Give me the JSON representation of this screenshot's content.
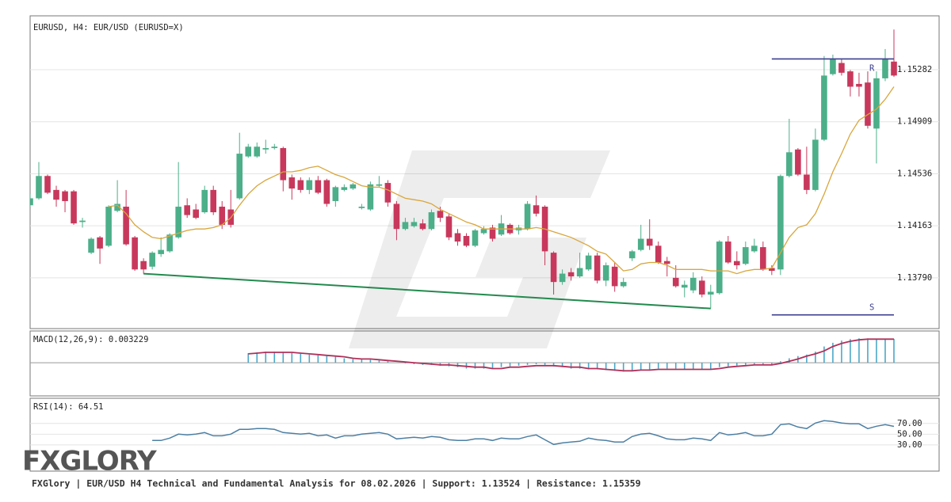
{
  "chart_data": [
    {
      "type": "candlestick",
      "title": "EURUSD, H4: EUR/USD (EURUSD=X)",
      "open": [
        1.1431,
        1.1436,
        1.1452,
        1.1442,
        1.1441,
        1.1441,
        1.1419,
        1.1397,
        1.1408,
        1.1402,
        1.1427,
        1.143,
        1.1408,
        1.1391,
        1.1387,
        1.1396,
        1.1398,
        1.1408,
        1.1431,
        1.1428,
        1.1426,
        1.1442,
        1.143,
        1.1428,
        1.1436,
        1.1466,
        1.1466,
        1.1471,
        1.1472,
        1.1472,
        1.1451,
        1.1449,
        1.1442,
        1.1449,
        1.1449,
        1.1434,
        1.1442,
        1.1443,
        1.1429,
        1.1428,
        1.1445,
        1.1447,
        1.1432,
        1.1414,
        1.1416,
        1.1418,
        1.1414,
        1.1427,
        1.1423,
        1.1411,
        1.1409,
        1.1402,
        1.1411,
        1.1415,
        1.141,
        1.1417,
        1.1413,
        1.1414,
        1.1431,
        1.143,
        1.1397,
        1.1376,
        1.1383,
        1.138,
        1.1385,
        1.1395,
        1.1377,
        1.1387,
        1.1373,
        1.1393,
        1.1399,
        1.1407,
        1.1402,
        1.1391,
        1.1379,
        1.1372,
        1.137,
        1.1377,
        1.1367,
        1.1368,
        1.1405,
        1.1391,
        1.1389,
        1.1398,
        1.1401,
        1.1386,
        1.1385,
        1.1452,
        1.1471,
        1.1453,
        1.1442,
        1.1478,
        1.1525,
        1.1533,
        1.1527,
        1.1518,
        1.1519,
        1.1486,
        1.1522,
        1.1534
      ],
      "high": [
        1.1439,
        1.1462,
        1.1453,
        1.1445,
        1.1442,
        1.1442,
        1.1422,
        1.1408,
        1.1409,
        1.1431,
        1.1449,
        1.1442,
        1.1409,
        1.1393,
        1.1398,
        1.1408,
        1.1411,
        1.1462,
        1.1436,
        1.1432,
        1.1445,
        1.1445,
        1.1434,
        1.1442,
        1.1483,
        1.1475,
        1.1476,
        1.1478,
        1.1475,
        1.1473,
        1.1453,
        1.1451,
        1.1451,
        1.1452,
        1.145,
        1.1445,
        1.1446,
        1.1447,
        1.1432,
        1.1448,
        1.1452,
        1.1449,
        1.1434,
        1.1422,
        1.1422,
        1.1421,
        1.1428,
        1.143,
        1.1425,
        1.1414,
        1.1411,
        1.1414,
        1.1416,
        1.1417,
        1.1424,
        1.1418,
        1.1417,
        1.1434,
        1.1438,
        1.1431,
        1.1398,
        1.1385,
        1.1386,
        1.1397,
        1.1397,
        1.1397,
        1.139,
        1.139,
        1.1379,
        1.1399,
        1.1417,
        1.1421,
        1.1405,
        1.1394,
        1.1388,
        1.1377,
        1.1383,
        1.138,
        1.1374,
        1.1406,
        1.1409,
        1.1398,
        1.1405,
        1.1407,
        1.1405,
        1.1388,
        1.1453,
        1.1493,
        1.1472,
        1.1473,
        1.1486,
        1.1538,
        1.1539,
        1.1536,
        1.1528,
        1.1526,
        1.1527,
        1.1527,
        1.1543,
        1.1557
      ],
      "low": [
        1.143,
        1.1435,
        1.1439,
        1.143,
        1.1426,
        1.1417,
        1.1415,
        1.1396,
        1.1389,
        1.1401,
        1.1426,
        1.1402,
        1.1384,
        1.1382,
        1.1385,
        1.1394,
        1.1397,
        1.1407,
        1.1422,
        1.1421,
        1.1425,
        1.1424,
        1.1414,
        1.1415,
        1.1435,
        1.1465,
        1.1465,
        1.1468,
        1.1471,
        1.1441,
        1.1435,
        1.144,
        1.1439,
        1.1439,
        1.143,
        1.143,
        1.1441,
        1.1442,
        1.1428,
        1.1427,
        1.1444,
        1.143,
        1.1406,
        1.1413,
        1.1415,
        1.1413,
        1.1413,
        1.1419,
        1.1406,
        1.1402,
        1.1401,
        1.1401,
        1.141,
        1.1405,
        1.1409,
        1.141,
        1.141,
        1.1413,
        1.1423,
        1.1388,
        1.1367,
        1.1374,
        1.1377,
        1.1379,
        1.1384,
        1.1375,
        1.1373,
        1.1369,
        1.1372,
        1.1391,
        1.1398,
        1.1399,
        1.1389,
        1.138,
        1.1372,
        1.1365,
        1.1368,
        1.1365,
        1.1357,
        1.1367,
        1.1389,
        1.1385,
        1.1388,
        1.1397,
        1.1384,
        1.1381,
        1.1381,
        1.1451,
        1.1452,
        1.1439,
        1.1441,
        1.1477,
        1.1524,
        1.1524,
        1.1509,
        1.1509,
        1.1486,
        1.1461,
        1.152,
        1.1523
      ],
      "close": [
        1.1436,
        1.1452,
        1.144,
        1.1435,
        1.1434,
        1.1418,
        1.142,
        1.1407,
        1.14,
        1.143,
        1.1432,
        1.1403,
        1.1385,
        1.1385,
        1.1397,
        1.1399,
        1.141,
        1.143,
        1.1424,
        1.1422,
        1.1442,
        1.1426,
        1.1417,
        1.1417,
        1.1468,
        1.1473,
        1.1473,
        1.1472,
        1.1473,
        1.1449,
        1.1443,
        1.1442,
        1.1449,
        1.144,
        1.1432,
        1.1444,
        1.1444,
        1.1446,
        1.143,
        1.1446,
        1.1446,
        1.1433,
        1.1414,
        1.1419,
        1.1419,
        1.1414,
        1.1426,
        1.1422,
        1.1408,
        1.1405,
        1.1402,
        1.1413,
        1.1414,
        1.1407,
        1.1418,
        1.1411,
        1.1415,
        1.1432,
        1.1425,
        1.1398,
        1.1376,
        1.1382,
        1.138,
        1.1386,
        1.1395,
        1.1377,
        1.1388,
        1.1373,
        1.1376,
        1.1398,
        1.1407,
        1.1402,
        1.139,
        1.1389,
        1.1373,
        1.1374,
        1.1379,
        1.1367,
        1.1369,
        1.1405,
        1.139,
        1.1388,
        1.1401,
        1.1402,
        1.1385,
        1.1384,
        1.1452,
        1.1469,
        1.1453,
        1.1442,
        1.1478,
        1.1524,
        1.1536,
        1.1526,
        1.1516,
        1.1516,
        1.1488,
        1.1522,
        1.1536,
        1.1524
      ],
      "up_color": "#4caf8a",
      "down_color": "#c8385c",
      "ma_values": [
        null,
        null,
        null,
        null,
        null,
        null,
        null,
        null,
        null,
        1.143,
        1.1431,
        1.1425,
        1.1417,
        1.1412,
        1.1408,
        1.1407,
        1.1409,
        1.1411,
        1.1413,
        1.1414,
        1.1414,
        1.1415,
        1.1417,
        1.1422,
        1.1431,
        1.1439,
        1.1445,
        1.1449,
        1.1452,
        1.1455,
        1.1455,
        1.1456,
        1.1458,
        1.1459,
        1.1456,
        1.1453,
        1.1451,
        1.1448,
        1.1445,
        1.1444,
        1.1444,
        1.1442,
        1.1439,
        1.1436,
        1.1435,
        1.1434,
        1.1432,
        1.1428,
        1.1425,
        1.1422,
        1.1419,
        1.1417,
        1.1414,
        1.1414,
        1.1414,
        1.1414,
        1.1414,
        1.1414,
        1.1415,
        1.1414,
        1.1412,
        1.141,
        1.1408,
        1.1405,
        1.1402,
        1.1398,
        1.1396,
        1.139,
        1.1384,
        1.1385,
        1.1389,
        1.139,
        1.139,
        1.1388,
        1.1385,
        1.1385,
        1.1385,
        1.1385,
        1.1384,
        1.1384,
        1.1384,
        1.1382,
        1.1384,
        1.1385,
        1.1385,
        1.1386,
        1.1397,
        1.1408,
        1.1415,
        1.1417,
        1.1425,
        1.1439,
        1.1455,
        1.1468,
        1.1482,
        1.1492,
        1.1496,
        1.15,
        1.1507,
        1.1516
      ],
      "ma_color": "#d9a63c",
      "trendline": {
        "x": [
          13,
          78
        ],
        "values": [
          1.1382,
          1.1357
        ],
        "color": "#238a4e"
      },
      "levels": [
        {
          "label": "R",
          "value": 1.15359,
          "from": 85
        },
        {
          "label": "S",
          "value": 1.13524,
          "from": 85
        }
      ],
      "level_color": "#3b3f8f",
      "ylim": [
        1.13426,
        1.15668
      ],
      "yticks": [
        1.15282,
        1.14909,
        1.14536,
        1.14163,
        {
          "value": 1.1379,
          "label": "1.13790"
        }
      ],
      "grid": true
    },
    {
      "type": "macd",
      "label": "MACD(12,26,9): 0.003229",
      "values": [
        null,
        null,
        null,
        null,
        null,
        null,
        null,
        null,
        null,
        null,
        null,
        null,
        null,
        null,
        null,
        null,
        null,
        null,
        null,
        null,
        null,
        null,
        null,
        null,
        null,
        0.0013,
        0.0014,
        0.0015,
        0.0015,
        0.0014,
        0.0013,
        0.0012,
        0.0011,
        0.001,
        0.0009,
        0.0008,
        0.0006,
        0.0005,
        0.0005,
        0.0004,
        0.0003,
        0.0002,
        0,
        -0.0001,
        -0.0002,
        -0.0003,
        -0.0003,
        -0.0004,
        -0.0005,
        -0.0006,
        -0.0008,
        -0.0008,
        -0.0008,
        -0.0008,
        -0.0006,
        -0.0005,
        -0.0004,
        -0.0003,
        -0.0002,
        -0.0003,
        -0.0005,
        -0.0006,
        -0.0008,
        -0.0008,
        -0.0009,
        -0.0009,
        -0.001,
        -0.0011,
        -0.0012,
        -0.0011,
        -0.001,
        -0.0009,
        -0.0008,
        -0.0008,
        -0.0008,
        -0.0009,
        -0.0009,
        -0.0009,
        -0.0009,
        -0.0006,
        -0.0005,
        -0.0004,
        -0.0003,
        -0.0002,
        -0.0002,
        -0.0003,
        0.0002,
        0.0006,
        0.0009,
        0.0011,
        0.0015,
        0.0022,
        0.0027,
        0.003,
        0.0032,
        0.0033,
        0.0033,
        0.0032,
        0.0032,
        0.003229
      ],
      "signal": [
        null,
        null,
        null,
        null,
        null,
        null,
        null,
        null,
        null,
        null,
        null,
        null,
        null,
        null,
        null,
        null,
        null,
        null,
        null,
        null,
        null,
        null,
        null,
        null,
        null,
        0.0012,
        0.0013,
        0.0014,
        0.0014,
        0.0014,
        0.0014,
        0.0013,
        0.0012,
        0.0011,
        0.001,
        0.0009,
        0.0008,
        0.0006,
        0.0005,
        0.0005,
        0.0004,
        0.0003,
        0.0002,
        0.0001,
        0,
        -0.0001,
        -0.0002,
        -0.0003,
        -0.0003,
        -0.0004,
        -0.0005,
        -0.0006,
        -0.0006,
        -0.0008,
        -0.0008,
        -0.0006,
        -0.0006,
        -0.0005,
        -0.0004,
        -0.0004,
        -0.0004,
        -0.0005,
        -0.0006,
        -0.0006,
        -0.0008,
        -0.0008,
        -0.0009,
        -0.001,
        -0.0011,
        -0.0011,
        -0.001,
        -0.001,
        -0.0009,
        -0.0009,
        -0.0009,
        -0.0009,
        -0.0009,
        -0.0009,
        -0.0009,
        -0.0008,
        -0.0006,
        -0.0005,
        -0.0004,
        -0.0003,
        -0.0003,
        -0.0003,
        -0.0001,
        0.0002,
        0.0005,
        0.0009,
        0.0012,
        0.0016,
        0.0022,
        0.0026,
        0.0029,
        0.0031,
        0.0032,
        0.0032,
        0.0032,
        0.0032
      ],
      "color": "#4aa8c8",
      "signal_color": "#b0305a",
      "ylim": [
        -0.0045,
        0.0043
      ]
    },
    {
      "type": "line",
      "label": "RSI(14): 64.51",
      "values": [
        null,
        null,
        null,
        null,
        null,
        null,
        null,
        null,
        null,
        null,
        null,
        null,
        null,
        null,
        38.2,
        38.2,
        42.6,
        50,
        48.5,
        50,
        53,
        47,
        47,
        50,
        58.9,
        58.9,
        60.4,
        60.4,
        58.9,
        53,
        51.5,
        50,
        51.5,
        47,
        48.5,
        42.6,
        47,
        47,
        50,
        51.5,
        53,
        50,
        41.1,
        42.6,
        44.1,
        42.6,
        45.6,
        44.1,
        39.6,
        38.2,
        38.2,
        41.1,
        41.1,
        38.2,
        42.6,
        41.1,
        41.1,
        45.6,
        48.5,
        39.6,
        30.8,
        33.7,
        35.2,
        36.7,
        42.6,
        39.6,
        38.2,
        35.2,
        35.2,
        45.6,
        50,
        51.5,
        47,
        41.1,
        39.6,
        39.6,
        42.6,
        41.1,
        38.2,
        53,
        48.5,
        50,
        53,
        47,
        47,
        50,
        67.8,
        69.2,
        63.3,
        60.4,
        70.7,
        75.2,
        73.7,
        70.7,
        69.2,
        69.2,
        60.4,
        64.8,
        67.8,
        64.51
      ],
      "color": "#4d7fa3",
      "ylim": [
        -19,
        117
      ],
      "yticks": [
        {
          "value": 70,
          "label": "70.00"
        },
        {
          "value": 50,
          "label": "50.00"
        },
        {
          "value": 30,
          "label": "30.00"
        }
      ]
    }
  ],
  "logo": "FXGLORY",
  "footer": "FXGlory | EUR/USD H4 Technical and Fundamental Analysis for 08.02.2026 | Support: 1.13524 | Resistance: 1.15359"
}
